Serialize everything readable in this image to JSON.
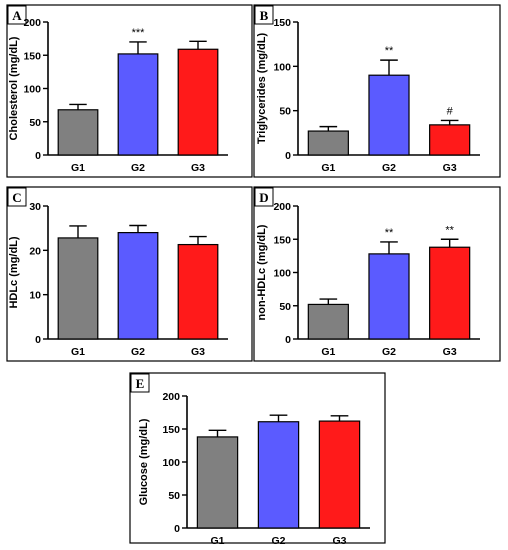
{
  "colors": {
    "G1": "#808080",
    "G2": "#5b5bff",
    "G3": "#ff1a1a"
  },
  "chart_data": [
    {
      "type": "bar",
      "panel": "A",
      "categories": [
        "G1",
        "G2",
        "G3"
      ],
      "values": [
        68,
        152,
        159
      ],
      "errors": [
        8,
        18,
        12
      ],
      "annotations": [
        "",
        "***",
        ""
      ],
      "ylabel": "Cholesterol (mg/dL)",
      "ylim": [
        0,
        200
      ],
      "yticks": [
        0,
        50,
        100,
        150,
        200
      ]
    },
    {
      "type": "bar",
      "panel": "B",
      "categories": [
        "G1",
        "G2",
        "G3"
      ],
      "values": [
        27,
        90,
        34
      ],
      "errors": [
        5,
        17,
        5
      ],
      "annotations": [
        "",
        "**",
        "#"
      ],
      "ylabel": "Triglycerides (mg/dL)",
      "ylim": [
        0,
        150
      ],
      "yticks": [
        0,
        50,
        100,
        150
      ]
    },
    {
      "type": "bar",
      "panel": "C",
      "categories": [
        "G1",
        "G2",
        "G3"
      ],
      "values": [
        22.8,
        24.0,
        21.3
      ],
      "errors": [
        2.7,
        1.6,
        1.8
      ],
      "annotations": [
        "",
        "",
        ""
      ],
      "ylabel": "HDLc (mg/dL)",
      "ylim": [
        0,
        30
      ],
      "yticks": [
        0,
        10,
        20,
        30
      ]
    },
    {
      "type": "bar",
      "panel": "D",
      "categories": [
        "G1",
        "G2",
        "G3"
      ],
      "values": [
        52,
        128,
        138
      ],
      "errors": [
        8,
        18,
        12
      ],
      "annotations": [
        "",
        "**",
        "**"
      ],
      "ylabel": "non-HDLc (mg/dL)",
      "ylim": [
        0,
        200
      ],
      "yticks": [
        0,
        50,
        100,
        150,
        200
      ]
    },
    {
      "type": "bar",
      "panel": "E",
      "categories": [
        "G1",
        "G2",
        "G3"
      ],
      "values": [
        138,
        161,
        162
      ],
      "errors": [
        10,
        10,
        8
      ],
      "annotations": [
        "",
        "",
        ""
      ],
      "ylabel": "Glucose (mg/dL)",
      "ylim": [
        0,
        200
      ],
      "yticks": [
        0,
        50,
        100,
        150,
        200
      ]
    }
  ]
}
